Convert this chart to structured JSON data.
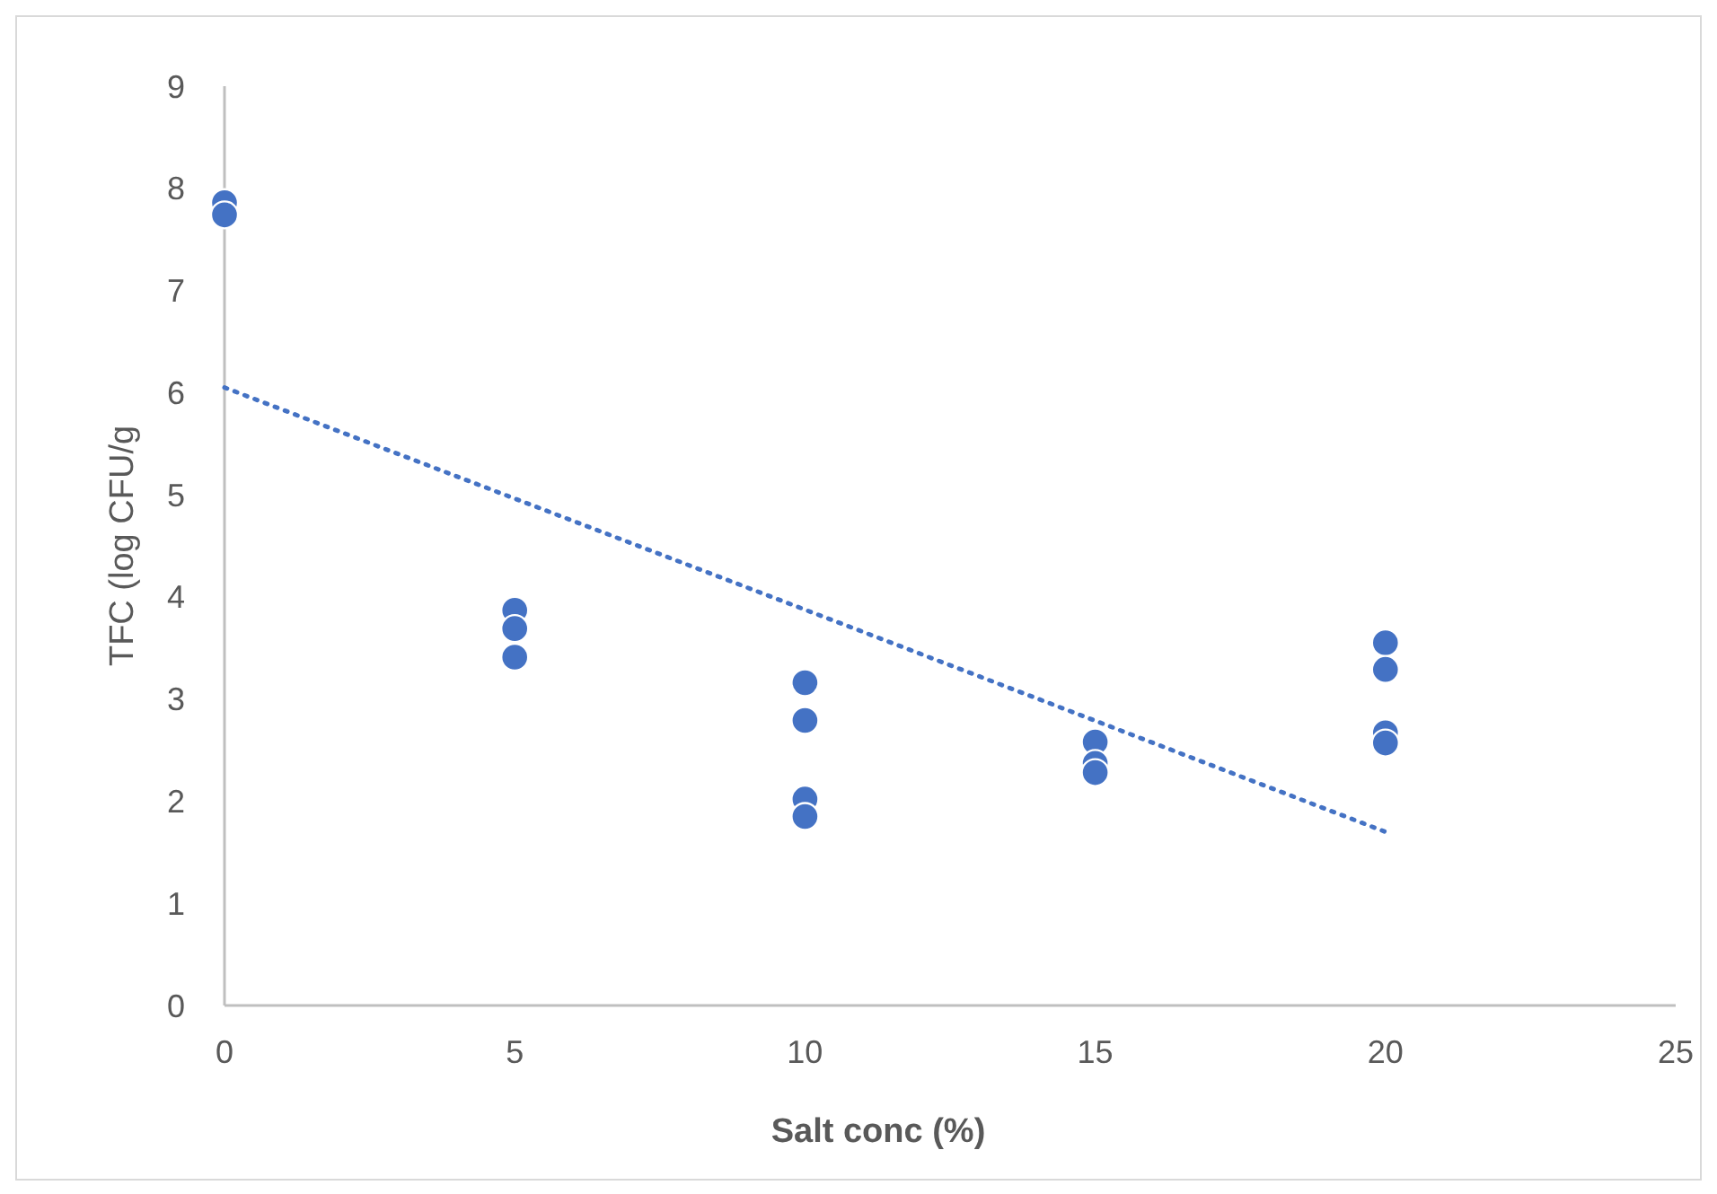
{
  "chart_data": {
    "type": "scatter",
    "xlabel": "Salt conc (%)",
    "ylabel": "TFC  (log CFU/g",
    "xlim": [
      0,
      25
    ],
    "xticks": [
      0,
      5,
      10,
      15,
      20,
      25
    ],
    "ylim": [
      0,
      9
    ],
    "yticks": [
      0,
      1,
      2,
      3,
      4,
      5,
      6,
      7,
      8,
      9
    ],
    "grid": false,
    "marker": "circle",
    "series": [
      {
        "color": "#4472c4",
        "x": [
          0,
          0,
          5,
          5,
          5,
          10,
          10,
          10,
          10,
          15,
          15,
          15,
          20,
          20,
          20,
          20
        ],
        "values": [
          7.86,
          7.74,
          3.87,
          3.69,
          3.41,
          3.16,
          2.79,
          2.02,
          1.85,
          2.58,
          2.37,
          2.28,
          3.55,
          3.29,
          2.67,
          2.57
        ]
      },
      {
        "type": "line",
        "color": "#4472c4",
        "line_style": "dotted",
        "marker": "none",
        "x": [
          0,
          20
        ],
        "values": [
          6.05,
          1.7
        ]
      }
    ]
  }
}
